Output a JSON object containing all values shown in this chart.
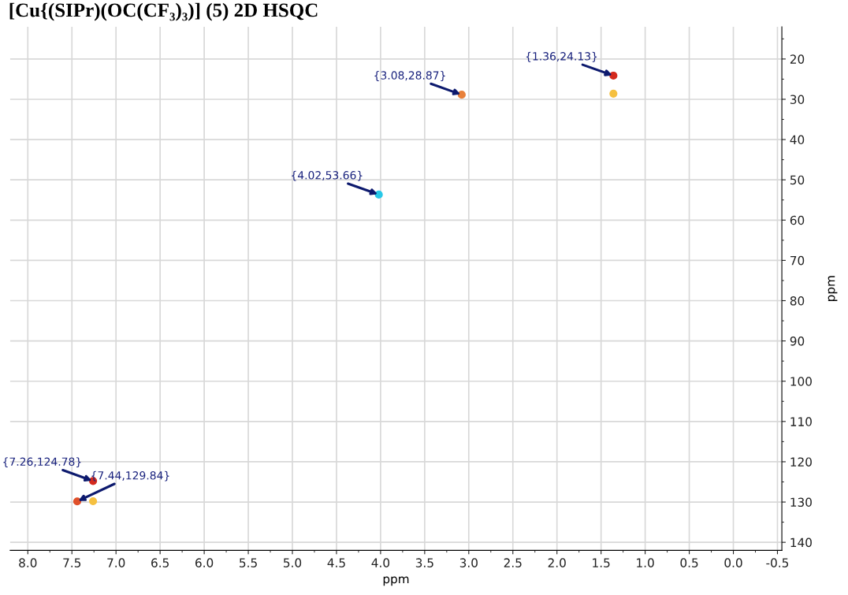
{
  "chart_data": {
    "type": "scatter",
    "title": "[Cu{(SIPr)(OC(CF₃)₃)] (5) 2D HSQC",
    "xlabel": "ppm",
    "ylabel": "ppm",
    "xlim": [
      8.2,
      -0.55
    ],
    "ylim": [
      142,
      12
    ],
    "xticks": [
      {
        "value": 8.0,
        "label": "8.0"
      },
      {
        "value": 7.5,
        "label": "7.5"
      },
      {
        "value": 7.0,
        "label": "7.0"
      },
      {
        "value": 6.5,
        "label": "6.5"
      },
      {
        "value": 6.0,
        "label": "6.0"
      },
      {
        "value": 5.5,
        "label": "5.5"
      },
      {
        "value": 5.0,
        "label": "5.0"
      },
      {
        "value": 4.5,
        "label": "4.5"
      },
      {
        "value": 4.0,
        "label": "4.0"
      },
      {
        "value": 3.5,
        "label": "3.5"
      },
      {
        "value": 3.0,
        "label": "3.0"
      },
      {
        "value": 2.5,
        "label": "2.5"
      },
      {
        "value": 2.0,
        "label": "2.0"
      },
      {
        "value": 1.5,
        "label": "1.5"
      },
      {
        "value": 1.0,
        "label": "1.0"
      },
      {
        "value": 0.5,
        "label": "0.5"
      },
      {
        "value": 0.0,
        "label": "0.0"
      },
      {
        "value": -0.5,
        "label": "-0.5"
      }
    ],
    "yticks": [
      20,
      30,
      40,
      50,
      60,
      70,
      80,
      90,
      100,
      110,
      120,
      130,
      140
    ],
    "grid": true,
    "marker": "circle",
    "series": [
      {
        "x": [
          1.36,
          3.08,
          4.02,
          7.26,
          7.44
        ],
        "values": [
          24.13,
          28.87,
          53.66,
          124.78,
          129.84
        ],
        "colors": [
          "#d42a1e",
          "#e8803a",
          "#28c8e8",
          "#d42a1e",
          "#e0502a"
        ]
      },
      {
        "x": [
          1.36,
          7.26
        ],
        "values": [
          28.6,
          129.8
        ],
        "color": "#f5c040"
      }
    ],
    "annotations": [
      {
        "text": "{1.36,24.13}",
        "x": 1.36,
        "y": 24.13
      },
      {
        "text": "{3.08,28.87}",
        "x": 3.08,
        "y": 28.87
      },
      {
        "text": "{4.02,53.66}",
        "x": 4.02,
        "y": 53.66
      },
      {
        "text": "{7.26,124.78}",
        "x": 7.26,
        "y": 124.78
      },
      {
        "text": "{7.44,129.84}",
        "x": 7.44,
        "y": 129.84
      }
    ]
  }
}
